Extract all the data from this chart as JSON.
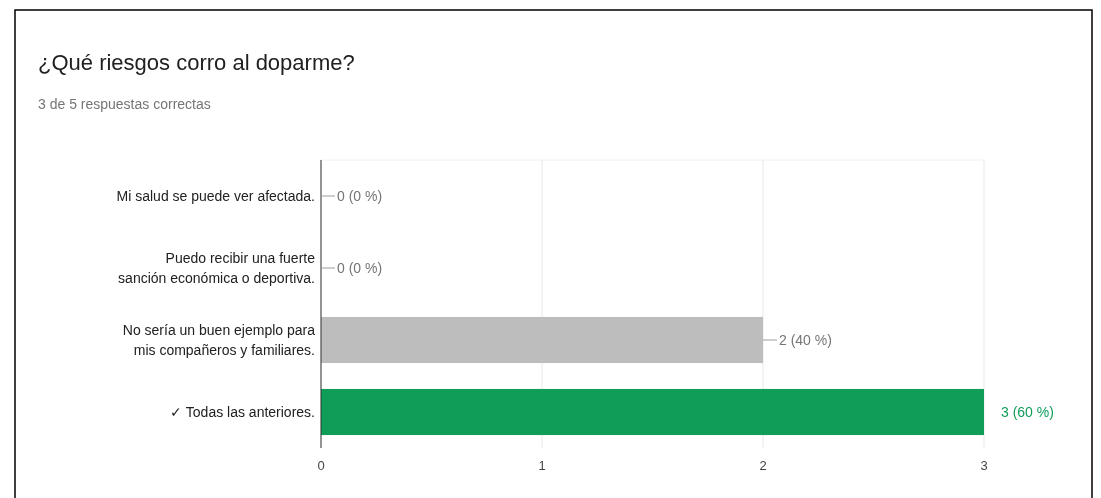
{
  "chart_data": {
    "type": "bar",
    "orientation": "horizontal",
    "title": "¿Qué riesgos corro al doparme?",
    "subtitle": "3 de 5 respuestas correctas",
    "categories": [
      "Mi salud se puede ver afectada.",
      "Puedo recibir una fuerte sanción económica o deportiva.",
      "No sería un buen ejemplo para mis compañeros y familiares.",
      "✓ Todas las anteriores."
    ],
    "values": [
      0,
      0,
      2,
      3
    ],
    "colors": [
      "#bdbdbd",
      "#bdbdbd",
      "#bdbdbd",
      "#0f9d58"
    ],
    "value_labels": [
      "0 (0 %)",
      "0 (0 %)",
      "2 (40 %)",
      "3 (60 %)"
    ],
    "xlim": [
      0,
      3
    ],
    "xticks": [
      0,
      1,
      2,
      3
    ],
    "grid": "x"
  }
}
